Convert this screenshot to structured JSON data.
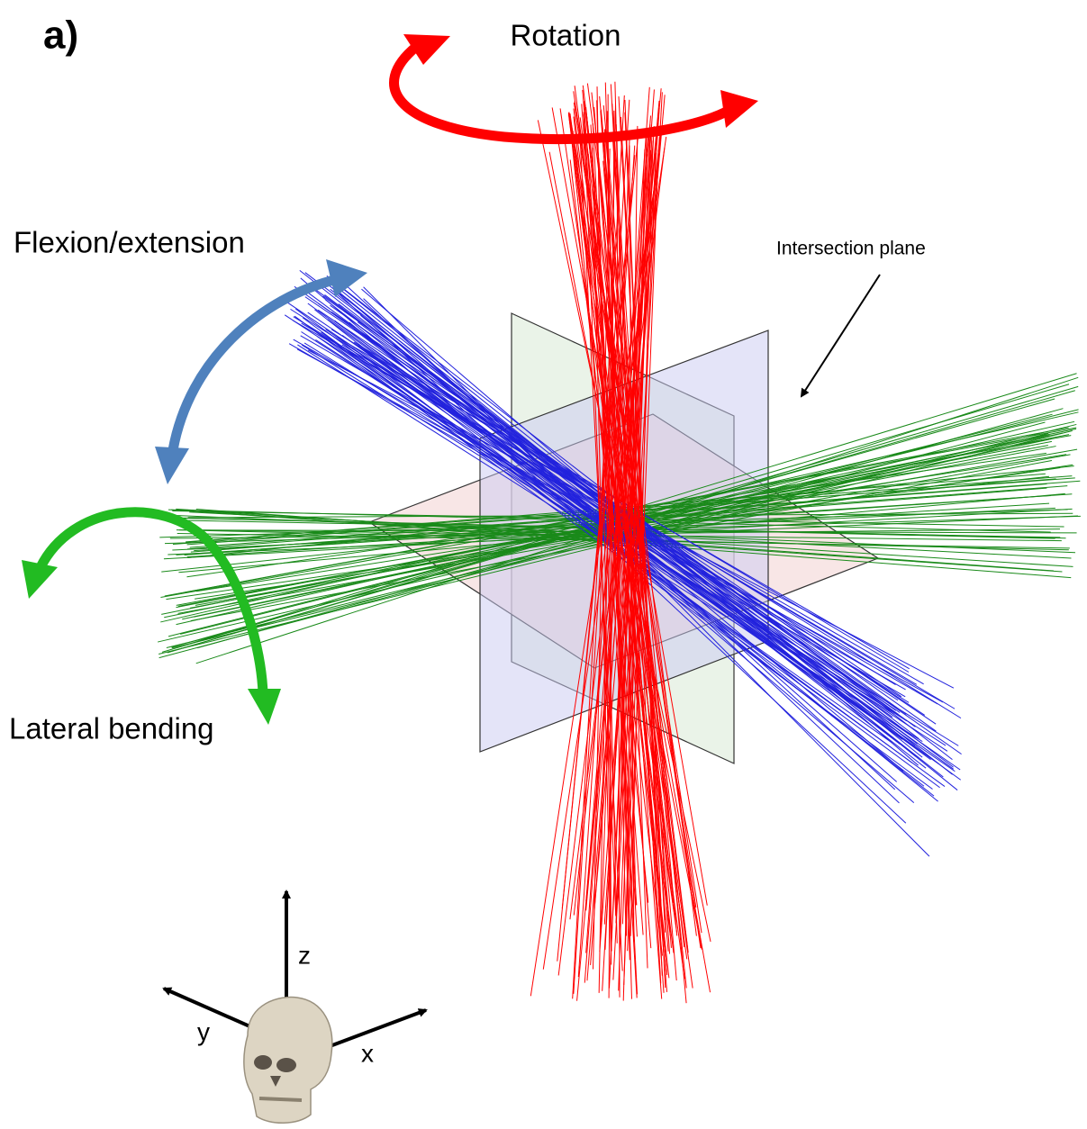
{
  "panel_label": "a)",
  "motions": {
    "rotation": "Rotation",
    "flexion": "Flexion/extension",
    "lateral": "Lateral bending"
  },
  "annotation": "Intersection plane",
  "axes": {
    "z": "z",
    "y": "y",
    "x": "x"
  }
}
